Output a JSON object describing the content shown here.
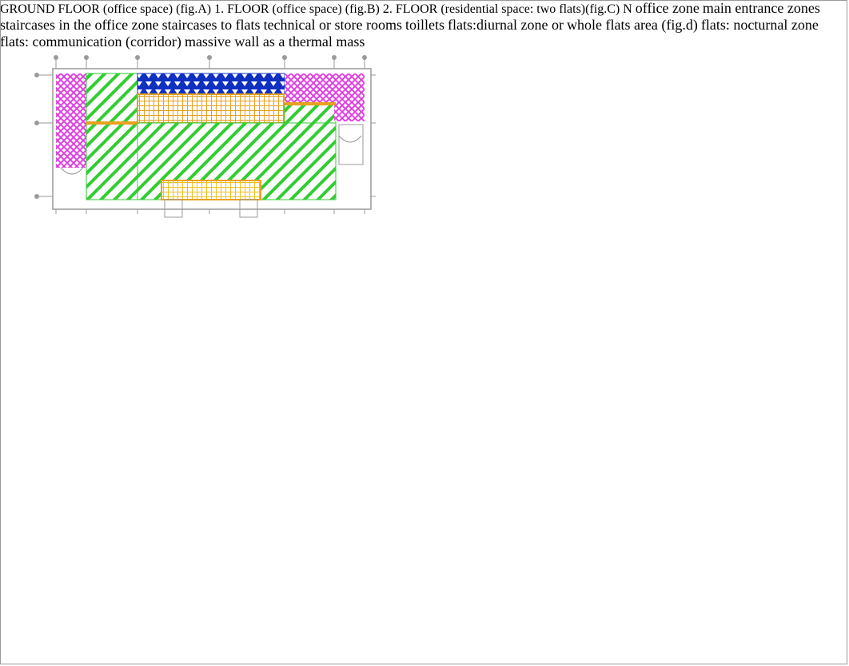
{
  "plans": {
    "a": {
      "caption": "GROUND FLOOR (office space)",
      "fig": "(fig.A)"
    },
    "b": {
      "caption": "1. FLOOR (office space)",
      "fig": "(fig.B)"
    },
    "c": {
      "caption": "2. FLOOR (residential space: two flats)(fig.C)"
    }
  },
  "legend": {
    "items": [
      {
        "label": "office zone",
        "pattern": "diagonal"
      },
      {
        "label": "main entrance zones",
        "pattern": "vertical-lines"
      },
      {
        "label": "staircases in the office zone",
        "pattern": "grid"
      },
      {
        "label": "staircases to flats",
        "pattern": "crosshatch"
      },
      {
        "label": "technical or store rooms",
        "pattern": "triangles"
      },
      {
        "label": "toillets",
        "pattern": "circles"
      },
      {
        "label": "flats:diurnal zone or",
        "label2": "whole flats area (fig.d)",
        "pattern": "fine-grid"
      },
      {
        "label": "flats: nocturnal zone",
        "pattern": "dense-grid"
      },
      {
        "label": "flats: communication (corridor)",
        "pattern": "dark-crosshatch"
      },
      {
        "label": "massive wall as a thermal mass",
        "pattern": "wall"
      }
    ]
  },
  "compass": {
    "label": "N"
  },
  "colors": {
    "office": "#33cc33",
    "entrance": "#e8a020",
    "staircase_flats": "#e040e0",
    "technical": "#1030c0",
    "toilets": "#f0e040",
    "flat_blue": "#7a8ed8",
    "flat_red": "#e02020",
    "line": "#9a9a9a"
  }
}
